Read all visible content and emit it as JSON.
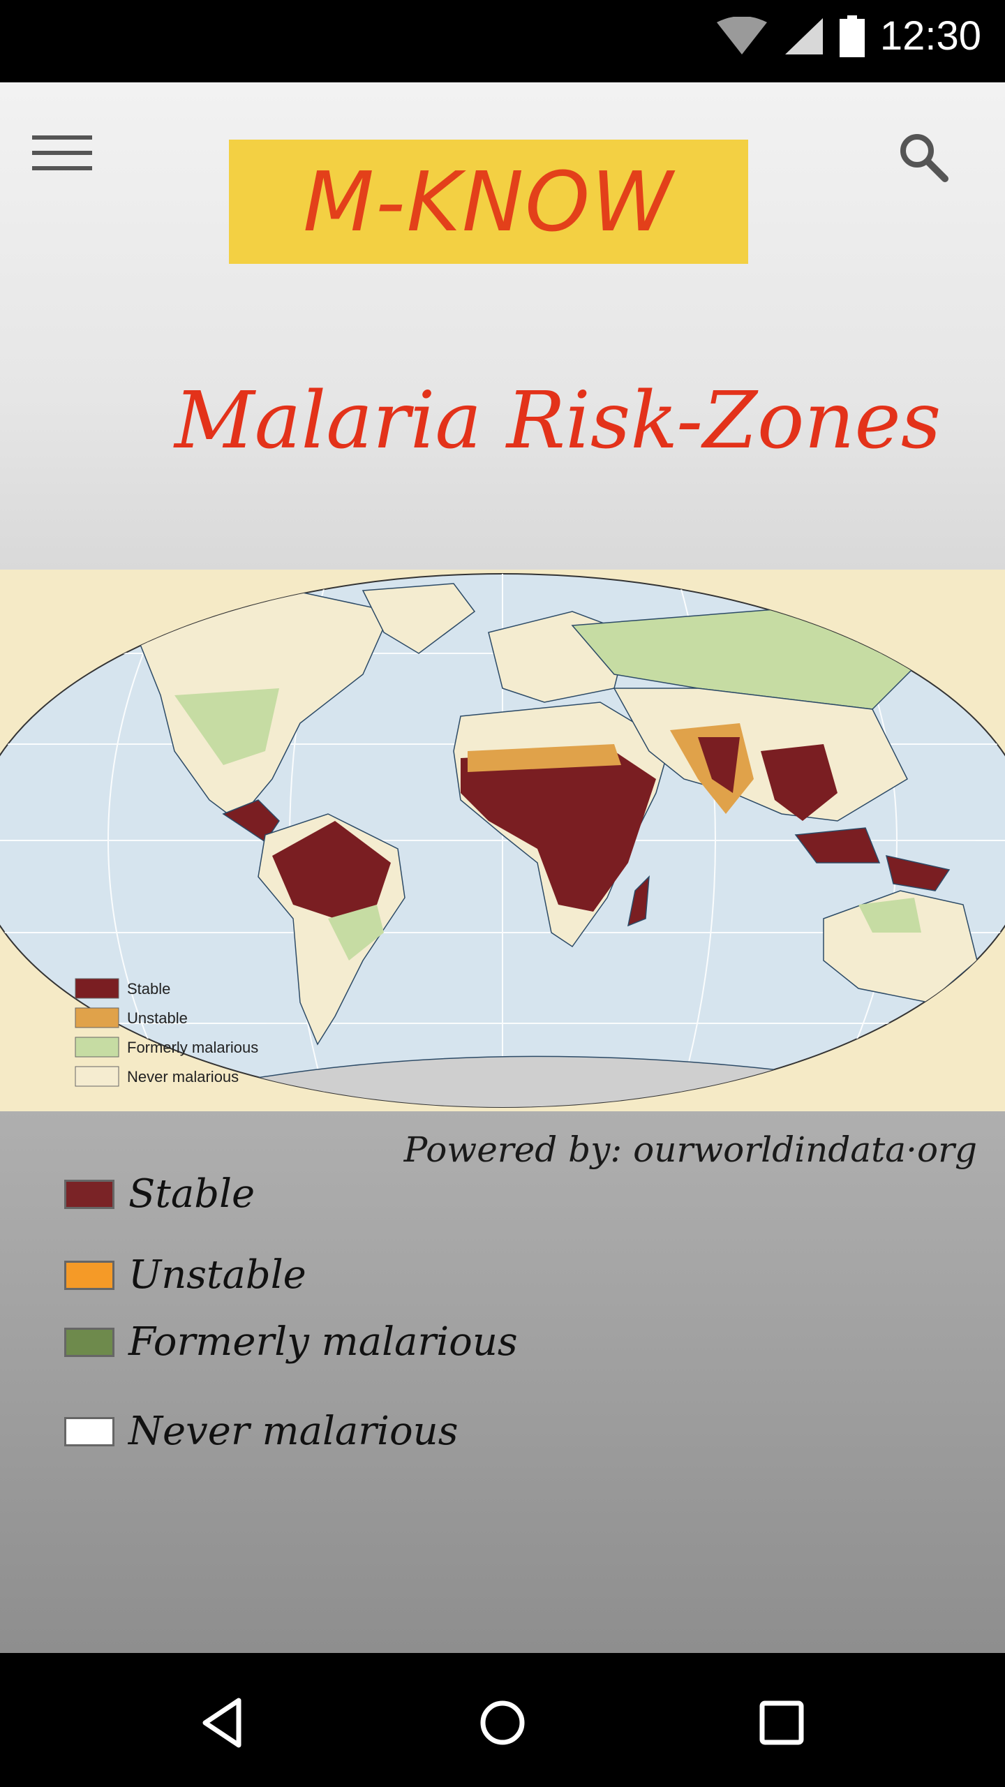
{
  "status_bar": {
    "time": "12:30",
    "icons": [
      "wifi-icon",
      "signal-icon",
      "battery-icon"
    ]
  },
  "header": {
    "menu_icon": "hamburger-menu-icon",
    "brand": "M-KNOW",
    "search_icon": "search-icon"
  },
  "page": {
    "title": "Malaria Risk-Zones"
  },
  "map": {
    "legend": [
      {
        "label": "Stable",
        "color": "#7a1e22"
      },
      {
        "label": "Unstable",
        "color": "#e0a24a"
      },
      {
        "label": "Formerly malarious",
        "color": "#c6dca3"
      },
      {
        "label": "Never malarious",
        "color": "#f5ecd0"
      }
    ],
    "ocean_color": "#d6e4ee",
    "land_color": "#f4ecd0"
  },
  "credit": "Powered by: ourworldindata·org",
  "legend": {
    "items": [
      {
        "label": "Stable",
        "color": "#7a2326"
      },
      {
        "label": "Unstable",
        "color": "#f59a27"
      },
      {
        "label": "Formerly malarious",
        "color": "#6e8a4c"
      },
      {
        "label": "Never malarious",
        "color": "#ffffff"
      }
    ]
  },
  "nav_bar": {
    "buttons": [
      "back-icon",
      "home-icon",
      "recents-icon"
    ]
  }
}
